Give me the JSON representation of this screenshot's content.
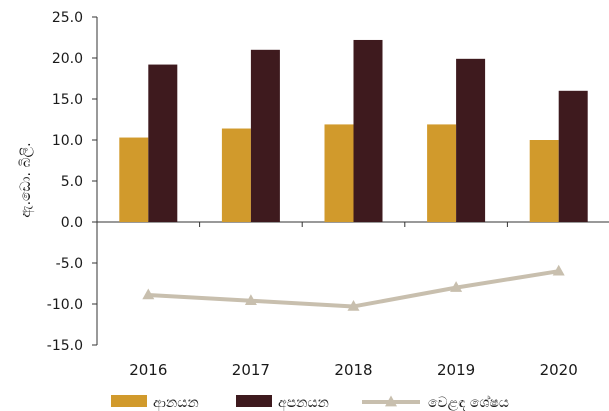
{
  "chart_data": {
    "type": "bar",
    "categories": [
      "2016",
      "2017",
      "2018",
      "2019",
      "2020"
    ],
    "series": [
      {
        "name": "ආනයන",
        "type": "bar",
        "color": "#D19A2C",
        "values": [
          10.3,
          11.4,
          11.9,
          11.9,
          10.0
        ]
      },
      {
        "name": "අපනයන",
        "type": "bar",
        "color": "#3E1A1E",
        "values": [
          19.2,
          21.0,
          22.2,
          19.9,
          16.0
        ]
      },
      {
        "name": "වෙළඳ ශේෂය",
        "type": "line",
        "marker": "triangle",
        "color": "#C8BFAE",
        "values": [
          -8.9,
          -9.6,
          -10.3,
          -8.0,
          -6.0
        ]
      }
    ],
    "ylabel": "ඇ.ඩො. බිලි.",
    "xlabel": "",
    "ylim": [
      -15.0,
      25.0
    ],
    "yticks": [
      "-15.0",
      "-10.0",
      "-5.0",
      "0.0",
      "5.0",
      "10.0",
      "15.0",
      "20.0",
      "25.0"
    ],
    "grid": false,
    "legend": "bottom"
  }
}
